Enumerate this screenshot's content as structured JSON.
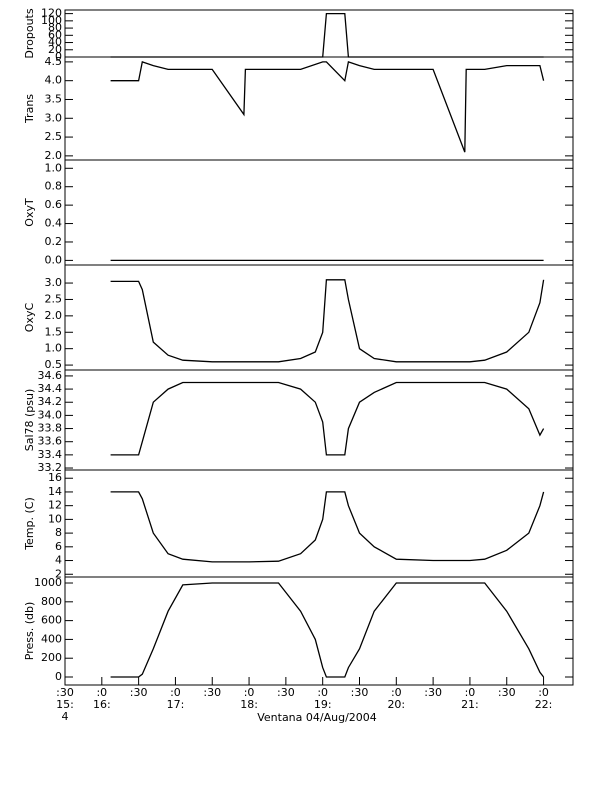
{
  "chart_data": [
    {
      "type": "line",
      "ylabel": "Dropouts",
      "xlim": [
        15.5,
        22.4
      ],
      "ylim": [
        0,
        130
      ],
      "yticks": [
        0,
        20,
        40,
        60,
        80,
        100,
        120
      ],
      "x": [
        16.12,
        19.0,
        19.05,
        19.3,
        19.35,
        22.0
      ],
      "color": "#000000",
      "values": [
        0,
        0,
        120,
        120,
        0,
        0
      ]
    },
    {
      "type": "line",
      "ylabel": "Trans",
      "xlim": [
        15.5,
        22.4
      ],
      "ylim": [
        1.89,
        4.63
      ],
      "yticks": [
        {
          "value": 2,
          "label": "2.0"
        },
        2.5,
        {
          "value": 3,
          "label": "3.0"
        },
        3.5,
        {
          "value": 4,
          "label": "4.0"
        },
        4.5
      ],
      "x": [
        16.12,
        16.5,
        16.55,
        16.7,
        16.9,
        17.1,
        17.5,
        17.93,
        17.95,
        18.4,
        18.7,
        19.0,
        19.05,
        19.3,
        19.35,
        19.5,
        19.7,
        20.0,
        20.5,
        20.93,
        20.95,
        21.2,
        21.5,
        21.8,
        21.95,
        22.0
      ],
      "color": "#000000",
      "values": [
        4.0,
        4.0,
        4.5,
        4.4,
        4.3,
        4.3,
        4.3,
        3.1,
        4.3,
        4.3,
        4.3,
        4.5,
        4.5,
        4.0,
        4.5,
        4.4,
        4.3,
        4.3,
        4.3,
        2.1,
        4.3,
        4.3,
        4.4,
        4.4,
        4.4,
        4.0
      ]
    },
    {
      "type": "line",
      "ylabel": "OxyT",
      "xlim": [
        15.5,
        22.4
      ],
      "ylim": [
        -0.05,
        1.09
      ],
      "yticks": [
        {
          "value": 0,
          "label": "0.0"
        },
        0.2,
        0.4,
        0.6,
        0.8,
        {
          "value": 1,
          "label": "1.0"
        }
      ],
      "x": [
        16.12,
        19.05,
        19.3,
        22.0
      ],
      "color": "#000000",
      "values": [
        0,
        0,
        0,
        0
      ]
    },
    {
      "type": "line",
      "ylabel": "OxyC",
      "xlim": [
        15.5,
        22.4
      ],
      "ylim": [
        0.35,
        3.55
      ],
      "yticks": [
        0.5,
        {
          "value": 1,
          "label": "1.0"
        },
        1.5,
        {
          "value": 2,
          "label": "2.0"
        },
        2.5,
        {
          "value": 3,
          "label": "3.0"
        }
      ],
      "x": [
        16.12,
        16.5,
        16.55,
        16.7,
        16.9,
        17.1,
        17.5,
        18.0,
        18.4,
        18.7,
        18.9,
        19.0,
        19.05,
        19.3,
        19.35,
        19.5,
        19.7,
        20.0,
        20.5,
        21.0,
        21.2,
        21.5,
        21.8,
        21.95,
        22.0
      ],
      "color": "#000000",
      "values": [
        3.05,
        3.05,
        2.8,
        1.2,
        0.8,
        0.65,
        0.6,
        0.6,
        0.6,
        0.7,
        0.9,
        1.5,
        3.1,
        3.1,
        2.5,
        1.0,
        0.7,
        0.6,
        0.6,
        0.6,
        0.65,
        0.9,
        1.5,
        2.4,
        3.1
      ]
    },
    {
      "type": "line",
      "ylabel": "Sal78 (psu)",
      "xlim": [
        15.5,
        22.4
      ],
      "ylim": [
        33.17,
        34.69
      ],
      "yticks": [
        33.2,
        33.4,
        33.6,
        33.8,
        {
          "value": 34,
          "label": "34.0"
        },
        34.2,
        34.4,
        34.6
      ],
      "x": [
        16.12,
        16.5,
        16.55,
        16.7,
        16.9,
        17.1,
        17.5,
        18.0,
        18.4,
        18.7,
        18.9,
        19.0,
        19.05,
        19.3,
        19.35,
        19.5,
        19.7,
        20.0,
        20.5,
        21.0,
        21.2,
        21.5,
        21.8,
        21.95,
        22.0
      ],
      "color": "#000000",
      "values": [
        33.4,
        33.4,
        33.6,
        34.2,
        34.4,
        34.5,
        34.5,
        34.5,
        34.5,
        34.4,
        34.2,
        33.9,
        33.4,
        33.4,
        33.8,
        34.2,
        34.35,
        34.5,
        34.5,
        34.5,
        34.5,
        34.4,
        34.1,
        33.7,
        33.8
      ]
    },
    {
      "type": "line",
      "ylabel": "Temp. (C)",
      "xlim": [
        15.5,
        22.4
      ],
      "ylim": [
        1.6,
        17.2
      ],
      "yticks": [
        2,
        4,
        6,
        8,
        10,
        12,
        14,
        16
      ],
      "x": [
        16.12,
        16.5,
        16.55,
        16.7,
        16.9,
        17.1,
        17.5,
        18.0,
        18.4,
        18.7,
        18.9,
        19.0,
        19.05,
        19.3,
        19.35,
        19.5,
        19.7,
        20.0,
        20.5,
        21.0,
        21.2,
        21.5,
        21.8,
        21.95,
        22.0
      ],
      "color": "#000000",
      "values": [
        14,
        14,
        13,
        8,
        5,
        4.2,
        3.8,
        3.8,
        3.9,
        5,
        7,
        10,
        14,
        14,
        12,
        8,
        6,
        4.2,
        4,
        4,
        4.2,
        5.5,
        8,
        12,
        14
      ]
    },
    {
      "type": "line",
      "ylabel": "Press. (db)",
      "xlabel": "Ventana 04/Aug/2004",
      "xlim": [
        15.5,
        22.4
      ],
      "ylim": [
        -85,
        1064
      ],
      "yticks": [
        0,
        200,
        400,
        600,
        800,
        1000
      ],
      "xticks": [
        {
          "value": 15.5,
          "label": ":30\n15:\n4"
        },
        {
          "value": 16,
          "label": ":0\n16:"
        },
        {
          "value": 16.5,
          "label": ":30"
        },
        {
          "value": 17,
          "label": ":0\n17:"
        },
        {
          "value": 17.5,
          "label": ":30"
        },
        {
          "value": 18,
          "label": ":0\n18:"
        },
        {
          "value": 18.5,
          "label": ":30"
        },
        {
          "value": 19,
          "label": ":0\n19:"
        },
        {
          "value": 19.5,
          "label": ":30"
        },
        {
          "value": 20,
          "label": ":0\n20:"
        },
        {
          "value": 20.5,
          "label": ":30"
        },
        {
          "value": 21,
          "label": ":0\n21:"
        },
        {
          "value": 21.5,
          "label": ":30"
        },
        {
          "value": 22,
          "label": ":0\n22:"
        }
      ],
      "x": [
        16.12,
        16.5,
        16.55,
        16.7,
        16.9,
        17.1,
        17.5,
        18.0,
        18.4,
        18.7,
        18.9,
        19.0,
        19.05,
        19.3,
        19.35,
        19.5,
        19.7,
        20.0,
        20.5,
        21.0,
        21.2,
        21.5,
        21.8,
        21.95,
        22.0
      ],
      "color": "#000000",
      "values": [
        0,
        0,
        30,
        300,
        700,
        980,
        1000,
        1000,
        1000,
        700,
        400,
        100,
        0,
        0,
        100,
        300,
        700,
        1000,
        1000,
        1000,
        1000,
        700,
        300,
        50,
        0
      ]
    }
  ]
}
